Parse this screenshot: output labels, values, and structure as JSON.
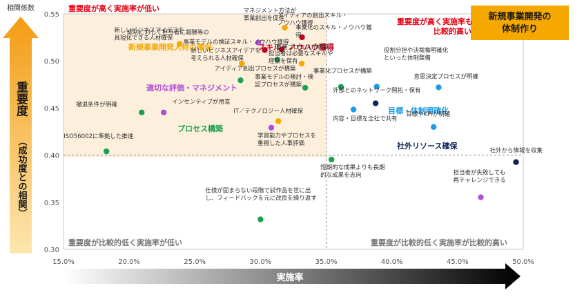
{
  "title_box": {
    "line1": "新規事業開発の",
    "line2": "体制作り"
  },
  "y_axis_title": "相関係数",
  "y_arrow_label": {
    "main": "重要度",
    "sub": "（成功度との相関）"
  },
  "x_arrow_label": "実施率",
  "quadrants": {
    "top_left": "重要度が高く実施率が低い",
    "top_right": {
      "line1": "重要度が高く実施率も",
      "line2": "比較的高い"
    },
    "bottom_left": "重要度が比較的低く実施率が低い",
    "bottom_right": "重要度が比較的低く実施率が比較的高い"
  },
  "groups": {
    "talent": {
      "name": "新規事業開発人材の確保",
      "color": "#f5a800"
    },
    "skill": {
      "name": "スキル・ノウハウ獲得",
      "color": "#c00020"
    },
    "evaluation": {
      "name": "適切な評価・マネジメント",
      "color": "#b04fd6"
    },
    "process": {
      "name": "プロセス構築",
      "color": "#1aa050"
    },
    "organization": {
      "name": "目標・体制明確化",
      "color": "#1e9be8"
    },
    "external": {
      "name": "社外リソース確保",
      "color": "#0d2257"
    }
  },
  "chart_data": {
    "type": "scatter",
    "title": "",
    "xlabel": "実施率",
    "ylabel": "相関係数",
    "xlim": [
      0.15,
      0.5
    ],
    "ylim": [
      0.3,
      0.55
    ],
    "x_ticks": [
      "15.0%",
      "20.0%",
      "25.0%",
      "30.0%",
      "35.0%",
      "40.0%",
      "45.0%",
      "50.0%"
    ],
    "y_ticks": [
      "0.30",
      "0.35",
      "0.40",
      "0.45",
      "0.50",
      "0.55"
    ],
    "reference_lines": {
      "x": 0.35,
      "y": 0.4
    },
    "points": [
      {
        "x": 0.2385,
        "y": 0.5181,
        "group": "talent",
        "label": [
          "新しいビジネスアイデアを",
          "具現化できる人材確保"
        ]
      },
      {
        "x": 0.3185,
        "y": 0.5353,
        "group": "talent",
        "label": [
          "マネジメント方法が",
          "事業創出を促進"
        ]
      },
      {
        "x": 0.2857,
        "y": 0.4972,
        "group": "talent",
        "label": [
          "新しいビジネスアイデアを",
          "考えられる人材確保"
        ]
      },
      {
        "x": 0.3136,
        "y": 0.4361,
        "group": "talent",
        "label": [
          "IT／テクノロジー人材確保"
        ]
      },
      {
        "x": 0.3313,
        "y": 0.4972,
        "group": "talent",
        "label": [
          "担当者は必要なスキルや",
          "経験を保有"
        ]
      },
      {
        "x": 0.3316,
        "y": 0.5251,
        "group": "skill",
        "label": [
          "アイディアの創出スキル・",
          "ノウハウ獲得"
        ]
      },
      {
        "x": 0.3032,
        "y": 0.5116,
        "group": "skill",
        "label": [
          "事業モデルの検証スキル・ノウハウ獲得"
        ]
      },
      {
        "x": 0.3161,
        "y": 0.5122,
        "group": "skill",
        "label": [
          "事業化のスキル・ノウハウ獲",
          "得"
        ]
      },
      {
        "x": 0.2263,
        "y": 0.4453,
        "group": "evaluation",
        "label": [
          "インセンティブが用意"
        ]
      },
      {
        "x": 0.3082,
        "y": 0.4292,
        "group": "evaluation",
        "label": [
          "学習能力やプロセスを",
          "重視した人事評価"
        ]
      },
      {
        "x": 0.2982,
        "y": 0.5195,
        "group": "evaluation",
        "label": [
          "成功に対して担当者に報酬等の"
        ]
      },
      {
        "x": 0.1827,
        "y": 0.404,
        "group": "process",
        "label": [
          "ISO56002に準拠した推進"
        ]
      },
      {
        "x": 0.2095,
        "y": 0.4453,
        "group": "process",
        "label": [
          "撤退条件が明確"
        ]
      },
      {
        "x": 0.2848,
        "y": 0.4795,
        "group": "process",
        "label": [
          "アイディア創出プロセスが構築"
        ]
      },
      {
        "x": 0.3127,
        "y": 0.5015,
        "group": "process",
        "label": [
          "事務プロセスが構築"
        ]
      },
      {
        "x": 0.334,
        "y": 0.4715,
        "group": "process",
        "label": [
          "事業モデルの検討・検",
          "証プロセスが構築"
        ]
      },
      {
        "x": 0.3612,
        "y": 0.4725,
        "group": "process",
        "label": [
          "事業化プロセスが構築"
        ]
      },
      {
        "x": 0.354,
        "y": 0.3953,
        "group": "process",
        "label": [
          "短期的な成果よりも長期",
          "的な成果を志向"
        ]
      },
      {
        "x": 0.3,
        "y": 0.3318,
        "group": "process",
        "label": [
          "仕様が固まらない段階で試作品を世に出",
          "し、フィードバックを元に改良を繰り返す"
        ]
      },
      {
        "x": 0.3885,
        "y": 0.4727,
        "group": "organization",
        "label": [
          "役割分担や決裁権明確化",
          "といった体制整備"
        ]
      },
      {
        "x": 0.4356,
        "y": 0.472,
        "group": "organization",
        "label": [
          "意思決定プロセスが明確"
        ]
      },
      {
        "x": 0.3708,
        "y": 0.4484,
        "group": "organization",
        "label": [
          "内容・目標を全社で共有"
        ]
      },
      {
        "x": 0.4318,
        "y": 0.4299,
        "group": "organization",
        "label": [
          "目標やKPIが明確"
        ]
      },
      {
        "x": 0.3876,
        "y": 0.455,
        "group": "external",
        "label": [
          "外部とのネットワーク開拓・保有"
        ]
      },
      {
        "x": 0.4945,
        "y": 0.3926,
        "group": "external",
        "label": [
          "社外から情報を収集"
        ]
      },
      {
        "x": 0.4677,
        "y": 0.3553,
        "group": "evaluation",
        "label": [
          "担当者が失敗しても",
          "再チャレンジできる"
        ]
      }
    ]
  }
}
